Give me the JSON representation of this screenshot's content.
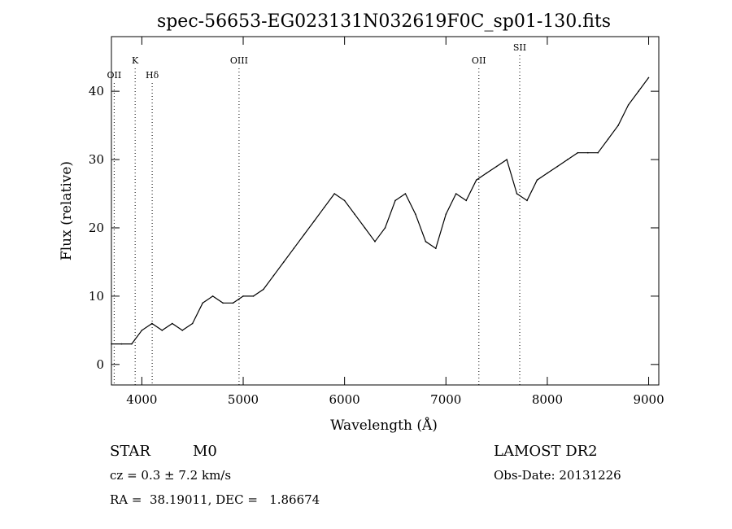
{
  "chart_data": {
    "type": "line",
    "title": "spec-56653-EG023131N032619F0C_sp01-130.fits",
    "xlabel": "Wavelength (Å)",
    "ylabel": "Flux (relative)",
    "xlim": [
      3700,
      9100
    ],
    "ylim": [
      -3,
      48
    ],
    "xticks": [
      4000,
      5000,
      6000,
      7000,
      8000,
      9000
    ],
    "yticks": [
      0,
      10,
      20,
      30,
      40
    ],
    "grid": false,
    "spectral_lines": [
      {
        "label": "OII",
        "wavelength": 3727
      },
      {
        "label": "K",
        "wavelength": 3934
      },
      {
        "label": "Hδ",
        "wavelength": 4102
      },
      {
        "label": "OIII",
        "wavelength": 4959
      },
      {
        "label": "OII",
        "wavelength": 7325
      },
      {
        "label": "SII",
        "wavelength": 7728
      }
    ],
    "series": [
      {
        "x": [
          3700,
          3800,
          3900,
          4000,
          4100,
          4200,
          4300,
          4400,
          4500,
          4600,
          4700,
          4800,
          4900,
          5000,
          5100,
          5200,
          5300,
          5400,
          5500,
          5600,
          5700,
          5800,
          5900,
          6000,
          6100,
          6200,
          6300,
          6400,
          6500,
          6600,
          6700,
          6800,
          6900,
          7000,
          7100,
          7200,
          7300,
          7400,
          7500,
          7600,
          7700,
          7800,
          7900,
          8000,
          8100,
          8200,
          8300,
          8400,
          8500,
          8600,
          8700,
          8800,
          8900,
          9000
        ],
        "y": [
          3,
          3,
          3,
          5,
          6,
          5,
          6,
          5,
          6,
          9,
          10,
          9,
          9,
          10,
          10,
          11,
          13,
          15,
          17,
          19,
          21,
          23,
          25,
          24,
          22,
          20,
          18,
          20,
          24,
          25,
          22,
          18,
          17,
          22,
          25,
          24,
          27,
          28,
          29,
          30,
          25,
          24,
          27,
          28,
          29,
          30,
          31,
          31,
          31,
          33,
          35,
          38,
          40,
          42
        ]
      }
    ],
    "annotations": {
      "object_class": "STAR",
      "subclass": "M0",
      "survey": "LAMOST DR2",
      "cz": "cz = 0.3 ± 7.2 km/s",
      "obs_date": "Obs-Date: 20131226",
      "coords": "RA =  38.19011, DEC =   1.86674"
    }
  }
}
